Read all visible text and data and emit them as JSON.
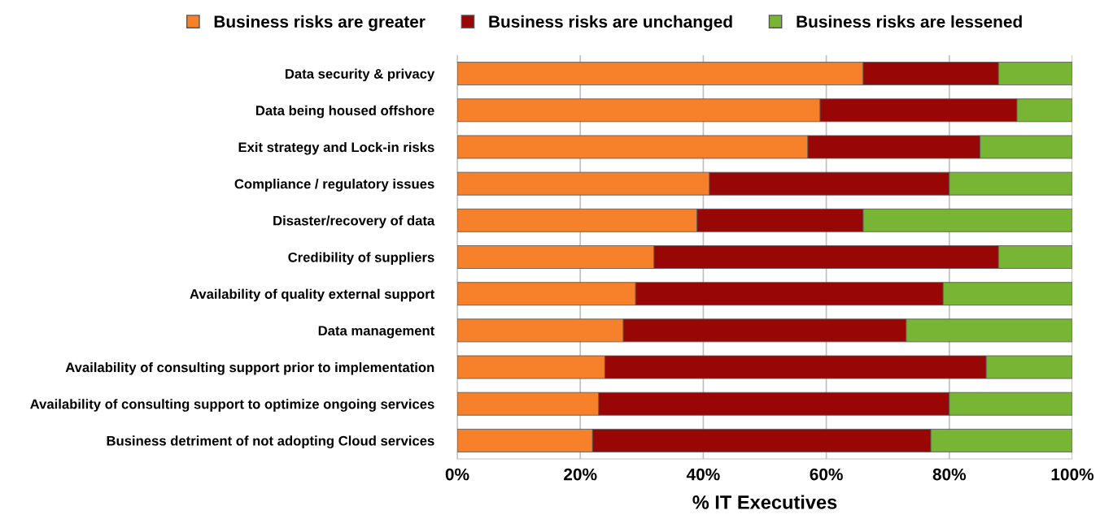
{
  "chart_data": {
    "type": "bar",
    "orientation": "horizontal",
    "stacked": true,
    "xlabel": "% IT Executives",
    "categories": [
      "Data security & privacy",
      "Data being housed offshore",
      "Exit strategy and Lock-in risks",
      "Compliance / regulatory issues",
      "Disaster/recovery of data",
      "Credibility of suppliers",
      "Availability of quality external support",
      "Data management",
      "Availability of consulting support prior to implementation",
      "Availability of consulting support to optimize ongoing services",
      "Business detriment of not adopting Cloud services"
    ],
    "series": [
      {
        "name": "Business risks are greater",
        "color": "#f7802a",
        "values": [
          66,
          59,
          57,
          41,
          39,
          32,
          29,
          27,
          24,
          23,
          22
        ]
      },
      {
        "name": "Business risks are unchanged",
        "color": "#990606",
        "values": [
          22,
          32,
          28,
          39,
          27,
          56,
          50,
          46,
          62,
          57,
          55
        ]
      },
      {
        "name": "Business risks are lessened",
        "color": "#78b535",
        "values": [
          12,
          9,
          15,
          20,
          34,
          12,
          21,
          27,
          14,
          20,
          23
        ]
      }
    ],
    "xlim": [
      0,
      100
    ],
    "xticks": [
      {
        "value": 0,
        "label": "0%"
      },
      {
        "value": 20,
        "label": "20%"
      },
      {
        "value": 40,
        "label": "40%"
      },
      {
        "value": 60,
        "label": "60%"
      },
      {
        "value": 80,
        "label": "80%"
      },
      {
        "value": 100,
        "label": "100%"
      }
    ],
    "grid": "x",
    "legend": "top"
  }
}
